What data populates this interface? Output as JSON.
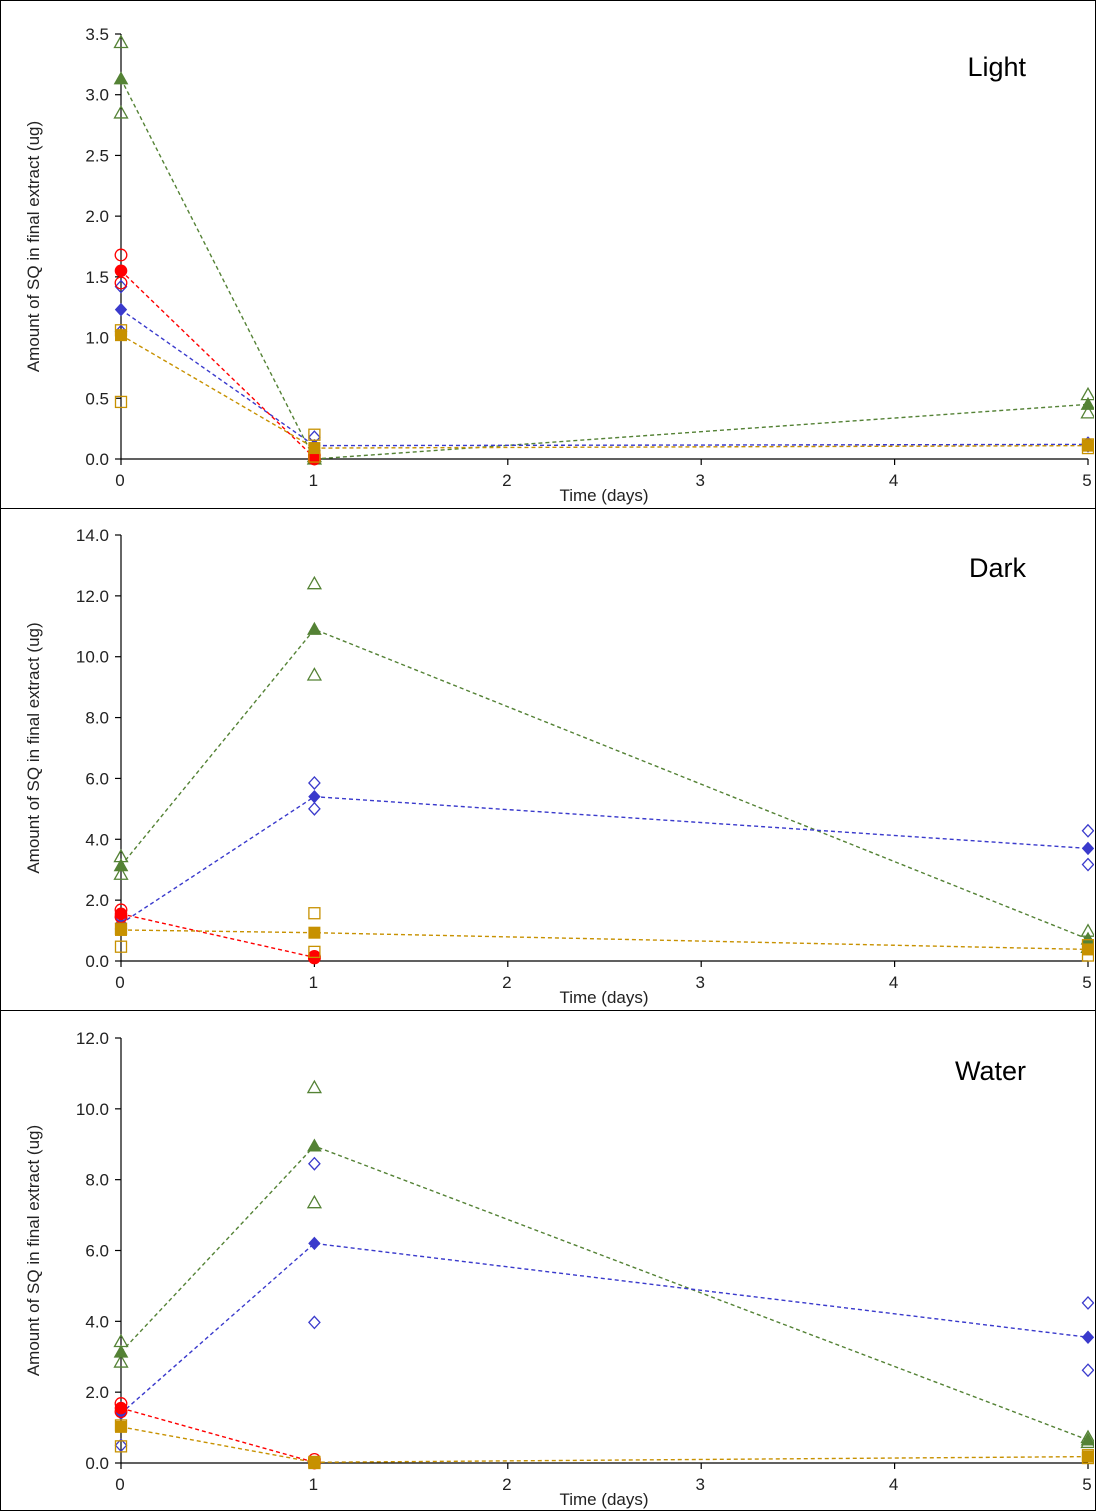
{
  "chart_data": [
    {
      "type": "scatter",
      "title": "Light",
      "xlabel": "Time (days)",
      "ylabel": "Amount of SQ  in final extract (ug)",
      "xlim": [
        0,
        5
      ],
      "ylim": [
        0,
        3.5
      ],
      "x_ticks": [
        "0",
        "1",
        "2",
        "3",
        "4",
        "5"
      ],
      "y_ticks": [
        "0.0",
        "0.5",
        "1.0",
        "1.5",
        "2.0",
        "2.5",
        "3.0",
        "3.5"
      ],
      "grid": false,
      "legend": "none",
      "series": [
        {
          "color": "#548235",
          "marker": "triangle",
          "mean": [
            [
              0,
              3.13
            ],
            [
              1,
              0.0
            ],
            [
              5,
              0.45
            ]
          ],
          "replicates": [
            [
              0,
              3.43
            ],
            [
              0,
              2.85
            ],
            [
              1,
              0.02
            ],
            [
              1,
              0.0
            ],
            [
              5,
              0.53
            ],
            [
              5,
              0.38
            ]
          ]
        },
        {
          "color": "#3a3acc",
          "marker": "diamond",
          "mean": [
            [
              0,
              1.23
            ],
            [
              1,
              0.11
            ],
            [
              5,
              0.12
            ]
          ],
          "replicates": [
            [
              0,
              1.42
            ],
            [
              0,
              1.05
            ],
            [
              1,
              0.18
            ],
            [
              1,
              0.07
            ],
            [
              5,
              0.13
            ],
            [
              5,
              0.11
            ]
          ]
        },
        {
          "color": "#ff0000",
          "marker": "circle",
          "mean": [
            [
              0,
              1.55
            ],
            [
              1,
              0.01
            ]
          ],
          "replicates": [
            [
              0,
              1.68
            ],
            [
              0,
              1.45
            ],
            [
              1,
              0.03
            ],
            [
              1,
              0.0
            ]
          ]
        },
        {
          "color": "#c79100",
          "marker": "square",
          "mean": [
            [
              0,
              1.02
            ],
            [
              1,
              0.09
            ],
            [
              5,
              0.11
            ]
          ],
          "replicates": [
            [
              0,
              0.47
            ],
            [
              0,
              1.06
            ],
            [
              1,
              0.2
            ],
            [
              1,
              0.02
            ],
            [
              5,
              0.09
            ],
            [
              5,
              0.12
            ]
          ]
        }
      ]
    },
    {
      "type": "scatter",
      "title": "Dark",
      "xlabel": "Time (days)",
      "ylabel": "Amount of SQ in final extract (ug)",
      "xlim": [
        0,
        5
      ],
      "ylim": [
        0,
        14
      ],
      "x_ticks": [
        "0",
        "1",
        "2",
        "3",
        "4",
        "5"
      ],
      "y_ticks": [
        "0.0",
        "2.0",
        "4.0",
        "6.0",
        "8.0",
        "10.0",
        "12.0",
        "14.0"
      ],
      "grid": false,
      "legend": "none",
      "series": [
        {
          "color": "#548235",
          "marker": "triangle",
          "mean": [
            [
              0,
              3.13
            ],
            [
              1,
              10.9
            ],
            [
              5,
              0.72
            ]
          ],
          "replicates": [
            [
              0,
              3.43
            ],
            [
              0,
              2.85
            ],
            [
              1,
              12.4
            ],
            [
              1,
              9.4
            ],
            [
              5,
              0.98
            ],
            [
              5,
              0.45
            ]
          ]
        },
        {
          "color": "#3a3acc",
          "marker": "diamond",
          "mean": [
            [
              0,
              1.23
            ],
            [
              1,
              5.4
            ],
            [
              5,
              3.7
            ]
          ],
          "replicates": [
            [
              0,
              1.42
            ],
            [
              0,
              1.05
            ],
            [
              1,
              5.85
            ],
            [
              1,
              5.0
            ],
            [
              5,
              4.28
            ],
            [
              5,
              3.17
            ]
          ]
        },
        {
          "color": "#ff0000",
          "marker": "circle",
          "mean": [
            [
              0,
              1.55
            ],
            [
              1,
              0.12
            ]
          ],
          "replicates": [
            [
              0,
              1.68
            ],
            [
              0,
              1.45
            ],
            [
              1,
              0.15
            ],
            [
              1,
              0.1
            ]
          ]
        },
        {
          "color": "#c79100",
          "marker": "square",
          "mean": [
            [
              0,
              1.02
            ],
            [
              1,
              0.93
            ],
            [
              5,
              0.38
            ]
          ],
          "replicates": [
            [
              0,
              0.47
            ],
            [
              0,
              1.06
            ],
            [
              1,
              1.57
            ],
            [
              1,
              0.3
            ],
            [
              5,
              0.52
            ],
            [
              5,
              0.18
            ]
          ]
        }
      ]
    },
    {
      "type": "scatter",
      "title": "Water",
      "xlabel": "Time (days)",
      "ylabel": "Amount of SQ in final extract (ug)",
      "xlim": [
        0,
        5
      ],
      "ylim": [
        0,
        12
      ],
      "x_ticks": [
        "0",
        "1",
        "2",
        "3",
        "4",
        "5"
      ],
      "y_ticks": [
        "0.0",
        "2.0",
        "4.0",
        "6.0",
        "8.0",
        "10.0",
        "12.0"
      ],
      "grid": false,
      "legend": "none",
      "series": [
        {
          "color": "#548235",
          "marker": "triangle",
          "mean": [
            [
              0,
              3.13
            ],
            [
              1,
              8.95
            ],
            [
              5,
              0.65
            ]
          ],
          "replicates": [
            [
              0,
              3.43
            ],
            [
              0,
              2.85
            ],
            [
              1,
              10.6
            ],
            [
              1,
              7.35
            ],
            [
              5,
              0.72
            ],
            [
              5,
              0.58
            ]
          ]
        },
        {
          "color": "#3a3acc",
          "marker": "diamond",
          "mean": [
            [
              0,
              1.4
            ],
            [
              1,
              6.2
            ],
            [
              5,
              3.55
            ]
          ],
          "replicates": [
            [
              0,
              0.5
            ],
            [
              0,
              1.55
            ],
            [
              1,
              8.45
            ],
            [
              1,
              3.97
            ],
            [
              5,
              4.52
            ],
            [
              5,
              2.62
            ]
          ]
        },
        {
          "color": "#ff0000",
          "marker": "circle",
          "mean": [
            [
              0,
              1.55
            ],
            [
              1,
              0.02
            ]
          ],
          "replicates": [
            [
              0,
              1.68
            ],
            [
              0,
              1.45
            ],
            [
              1,
              0.1
            ],
            [
              1,
              0.0
            ]
          ]
        },
        {
          "color": "#c79100",
          "marker": "square",
          "mean": [
            [
              0,
              1.02
            ],
            [
              1,
              0.02
            ],
            [
              5,
              0.18
            ]
          ],
          "replicates": [
            [
              0,
              0.47
            ],
            [
              0,
              1.06
            ],
            [
              1,
              0.03
            ],
            [
              1,
              0.0
            ],
            [
              5,
              0.22
            ],
            [
              5,
              0.14
            ]
          ]
        }
      ]
    }
  ]
}
